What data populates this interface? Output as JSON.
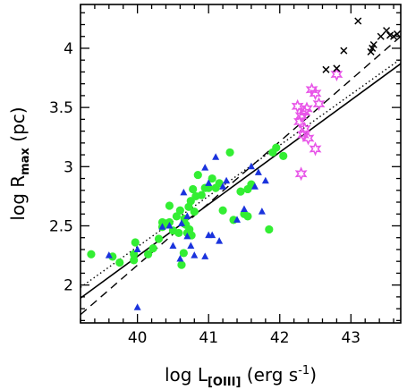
{
  "chart_data": {
    "type": "scatter",
    "xlabel": {
      "base": "log L",
      "sub": "[OIII]",
      "units": " (erg s",
      "sup": "-1",
      "close": ")"
    },
    "ylabel": {
      "base": "log R",
      "sub": "max",
      "units": "  (pc)"
    },
    "xlim": [
      39.2,
      43.7
    ],
    "ylim": [
      1.68,
      4.37
    ],
    "xticks": [
      40,
      41,
      42,
      43
    ],
    "yticks": [
      2,
      2.5,
      3,
      3.5,
      4
    ],
    "xtick_labels": [
      "40",
      "41",
      "42",
      "43"
    ],
    "ytick_labels": [
      "2",
      "2.5",
      "3",
      "3.5",
      "4"
    ],
    "colors": {
      "green": "#33ee33",
      "blue": "#1a33dd",
      "magenta": "#e855e8",
      "black": "#000000"
    },
    "series": [
      {
        "marker": "circle",
        "color": "green",
        "points": [
          [
            39.35,
            2.26
          ],
          [
            39.65,
            2.24
          ],
          [
            39.75,
            2.19
          ],
          [
            39.95,
            2.21
          ],
          [
            39.95,
            2.26
          ],
          [
            39.97,
            2.36
          ],
          [
            40.15,
            2.26
          ],
          [
            40.22,
            2.31
          ],
          [
            40.3,
            2.39
          ],
          [
            40.35,
            2.49
          ],
          [
            40.35,
            2.53
          ],
          [
            40.4,
            2.52
          ],
          [
            40.45,
            2.53
          ],
          [
            40.45,
            2.67
          ],
          [
            40.5,
            2.46
          ],
          [
            40.55,
            2.58
          ],
          [
            40.58,
            2.44
          ],
          [
            40.6,
            2.63
          ],
          [
            40.62,
            2.17
          ],
          [
            40.65,
            2.27
          ],
          [
            40.66,
            2.56
          ],
          [
            40.68,
            2.51
          ],
          [
            40.7,
            2.44
          ],
          [
            40.72,
            2.66
          ],
          [
            40.73,
            2.47
          ],
          [
            40.75,
            2.71
          ],
          [
            40.76,
            2.42
          ],
          [
            40.78,
            2.81
          ],
          [
            40.8,
            2.62
          ],
          [
            40.82,
            2.75
          ],
          [
            40.85,
            2.93
          ],
          [
            40.9,
            2.76
          ],
          [
            40.95,
            2.82
          ],
          [
            41,
            2.82
          ],
          [
            41.05,
            2.9
          ],
          [
            41.1,
            2.82
          ],
          [
            41.15,
            2.86
          ],
          [
            41.2,
            2.63
          ],
          [
            41.3,
            3.12
          ],
          [
            41.35,
            2.55
          ],
          [
            41.45,
            2.79
          ],
          [
            41.5,
            2.6
          ],
          [
            41.55,
            2.58
          ],
          [
            41.55,
            2.81
          ],
          [
            41.6,
            2.85
          ],
          [
            41.85,
            2.47
          ],
          [
            41.9,
            3.12
          ],
          [
            41.95,
            3.16
          ],
          [
            42.05,
            3.09
          ]
        ]
      },
      {
        "marker": "triangle",
        "color": "blue",
        "points": [
          [
            39.6,
            2.25
          ],
          [
            40,
            2.3
          ],
          [
            40,
            1.81
          ],
          [
            40.35,
            2.49
          ],
          [
            40.45,
            2.5
          ],
          [
            40.5,
            2.33
          ],
          [
            40.6,
            2.22
          ],
          [
            40.62,
            2.52
          ],
          [
            40.65,
            2.78
          ],
          [
            40.7,
            2.58
          ],
          [
            40.7,
            2.41
          ],
          [
            40.75,
            2.33
          ],
          [
            40.8,
            2.25
          ],
          [
            40.95,
            2.99
          ],
          [
            40.95,
            2.24
          ],
          [
            41,
            2.86
          ],
          [
            41,
            2.42
          ],
          [
            41.05,
            2.42
          ],
          [
            41.1,
            3.08
          ],
          [
            41.15,
            2.37
          ],
          [
            41.2,
            2.83
          ],
          [
            41.25,
            2.88
          ],
          [
            41.4,
            2.55
          ],
          [
            41.5,
            2.64
          ],
          [
            41.6,
            3.0
          ],
          [
            41.65,
            2.83
          ],
          [
            41.7,
            2.95
          ],
          [
            41.75,
            2.62
          ],
          [
            41.8,
            2.88
          ]
        ]
      },
      {
        "marker": "star",
        "color": "magenta",
        "points": [
          [
            42.25,
            3.51
          ],
          [
            42.28,
            3.38
          ],
          [
            42.3,
            3.43
          ],
          [
            42.33,
            3.27
          ],
          [
            42.35,
            3.46
          ],
          [
            42.35,
            3.32
          ],
          [
            42.38,
            3.49
          ],
          [
            42.4,
            3.24
          ],
          [
            42.45,
            3.65
          ],
          [
            42.5,
            3.62
          ],
          [
            42.5,
            3.15
          ],
          [
            42.55,
            3.53
          ],
          [
            42.3,
            2.94
          ],
          [
            42.8,
            3.78
          ]
        ]
      },
      {
        "marker": "cross",
        "color": "black",
        "points": [
          [
            42.65,
            3.82
          ],
          [
            42.8,
            3.83
          ],
          [
            42.9,
            3.98
          ],
          [
            43.1,
            4.23
          ],
          [
            43.28,
            3.97
          ],
          [
            43.3,
            4.0
          ],
          [
            43.32,
            4.03
          ],
          [
            43.42,
            4.1
          ],
          [
            43.5,
            4.15
          ],
          [
            43.55,
            4.11
          ],
          [
            43.6,
            4.1
          ],
          [
            43.65,
            4.12
          ]
        ]
      }
    ],
    "fit_lines": [
      {
        "style": "solid",
        "x": [
          39.2,
          43.7
        ],
        "y": [
          1.89,
          3.87
        ]
      },
      {
        "style": "dotted",
        "x": [
          39.2,
          43.7
        ],
        "y": [
          1.98,
          3.91
        ]
      },
      {
        "style": "dashed",
        "x": [
          39.2,
          43.7
        ],
        "y": [
          1.75,
          4.1
        ]
      }
    ]
  }
}
